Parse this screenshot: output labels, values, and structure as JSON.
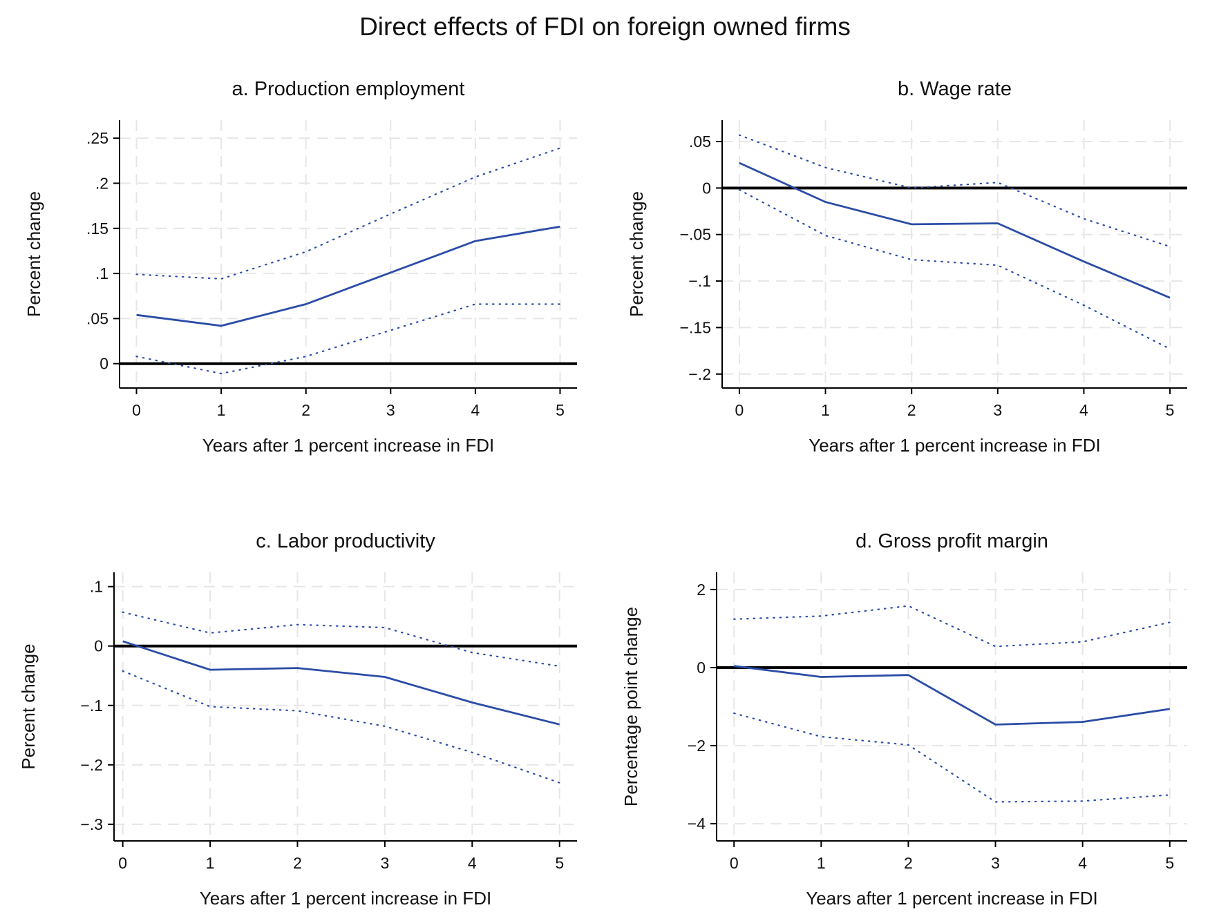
{
  "title": "Direct effects of FDI on foreign owned firms",
  "colors": {
    "estimate": "#2b4ca6",
    "ci": "#2b4ca6",
    "zero_line": "#000000",
    "grid": "#e6e6e6"
  },
  "chart_data": [
    {
      "type": "line",
      "title": "a. Production employment",
      "xlabel": "Years after 1 percent increase in FDI",
      "ylabel": "Percent change",
      "x": [
        0,
        1,
        2,
        3,
        4,
        5
      ],
      "xlim": [
        -0.2,
        5.2
      ],
      "ylim": [
        -0.027,
        0.27
      ],
      "yticks": [
        0,
        0.05,
        0.1,
        0.15,
        0.2,
        0.25
      ],
      "ytick_labels": [
        "0",
        ".05",
        ".1",
        ".15",
        ".2",
        ".25"
      ],
      "xtick_labels": [
        "0",
        "1",
        "2",
        "3",
        "4",
        "5"
      ],
      "grid": true,
      "series": [
        {
          "role": "estimate",
          "style": "solid",
          "values": [
            0.054,
            0.042,
            0.066,
            0.101,
            0.136,
            0.152
          ]
        },
        {
          "role": "upper-ci",
          "style": "dotted",
          "values": [
            0.099,
            0.094,
            0.124,
            0.166,
            0.207,
            0.239
          ]
        },
        {
          "role": "lower-ci",
          "style": "dotted",
          "values": [
            0.008,
            -0.011,
            0.008,
            0.037,
            0.066,
            0.066
          ]
        }
      ]
    },
    {
      "type": "line",
      "title": "b. Wage rate",
      "xlabel": "Years after 1 percent increase in FDI",
      "ylabel": "Percent change",
      "x": [
        0,
        1,
        2,
        3,
        4,
        5
      ],
      "xlim": [
        -0.2,
        5.2
      ],
      "ylim": [
        -0.215,
        0.073
      ],
      "yticks": [
        0.05,
        0,
        -0.05,
        -0.1,
        -0.15,
        -0.2
      ],
      "ytick_labels": [
        ".05",
        "0",
        "−.05",
        "−.1",
        "−.15",
        "−.2"
      ],
      "xtick_labels": [
        "0",
        "1",
        "2",
        "3",
        "4",
        "5"
      ],
      "grid": true,
      "series": [
        {
          "role": "estimate",
          "style": "solid",
          "values": [
            0.027,
            -0.015,
            -0.039,
            -0.038,
            -0.079,
            -0.118
          ]
        },
        {
          "role": "upper-ci",
          "style": "dotted",
          "values": [
            0.057,
            0.022,
            0.0,
            0.006,
            -0.033,
            -0.063
          ]
        },
        {
          "role": "lower-ci",
          "style": "dotted",
          "values": [
            -0.002,
            -0.051,
            -0.077,
            -0.083,
            -0.126,
            -0.173
          ]
        }
      ]
    },
    {
      "type": "line",
      "title": "c. Labor productivity",
      "xlabel": "Years after 1 percent increase in FDI",
      "ylabel": "Percent change",
      "x": [
        0,
        1,
        2,
        3,
        4,
        5
      ],
      "xlim": [
        -0.1,
        5.2
      ],
      "ylim": [
        -0.328,
        0.124
      ],
      "yticks": [
        0.1,
        0,
        -0.1,
        -0.2,
        -0.3
      ],
      "ytick_labels": [
        ".1",
        "0",
        "−.1",
        "−.2",
        "−.3"
      ],
      "xtick_labels": [
        "0",
        "1",
        "2",
        "3",
        "4",
        "5"
      ],
      "grid": true,
      "series": [
        {
          "role": "estimate",
          "style": "solid",
          "values": [
            0.008,
            -0.04,
            -0.037,
            -0.052,
            -0.095,
            -0.132
          ]
        },
        {
          "role": "upper-ci",
          "style": "dotted",
          "values": [
            0.057,
            0.022,
            0.036,
            0.031,
            -0.011,
            -0.034
          ]
        },
        {
          "role": "lower-ci",
          "style": "dotted",
          "values": [
            -0.042,
            -0.102,
            -0.109,
            -0.135,
            -0.179,
            -0.23
          ]
        }
      ]
    },
    {
      "type": "line",
      "title": "d. Gross profit margin",
      "xlabel": "Years after 1 percent increase in FDI",
      "ylabel": "Percentage point change",
      "x": [
        0,
        1,
        2,
        3,
        4,
        5
      ],
      "xlim": [
        -0.2,
        5.2
      ],
      "ylim": [
        -4.44,
        2.44
      ],
      "yticks": [
        2,
        0,
        -2,
        -4
      ],
      "ytick_labels": [
        "2",
        "0",
        "−2",
        "−4"
      ],
      "xtick_labels": [
        "0",
        "1",
        "2",
        "3",
        "4",
        "5"
      ],
      "grid": true,
      "series": [
        {
          "role": "estimate",
          "style": "solid",
          "values": [
            0.04,
            -0.24,
            -0.19,
            -1.46,
            -1.39,
            -1.06
          ]
        },
        {
          "role": "upper-ci",
          "style": "dotted",
          "values": [
            1.24,
            1.32,
            1.58,
            0.54,
            0.66,
            1.16
          ]
        },
        {
          "role": "lower-ci",
          "style": "dotted",
          "values": [
            -1.17,
            -1.77,
            -1.98,
            -3.44,
            -3.42,
            -3.26
          ]
        }
      ]
    }
  ]
}
